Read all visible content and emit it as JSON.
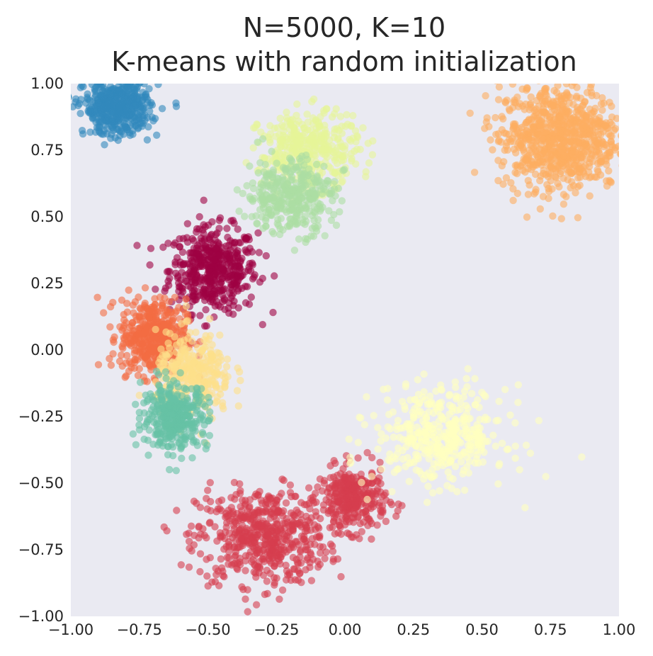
{
  "chart_data": {
    "type": "scatter",
    "title_lines": [
      "N=5000, K=10",
      "K-means with random initialization"
    ],
    "xlabel": "",
    "ylabel": "",
    "xlim": [
      -1.0,
      1.0
    ],
    "ylim": [
      -1.0,
      1.0
    ],
    "xticks": [
      "−1.00",
      "−0.75",
      "−0.50",
      "−0.25",
      "0.00",
      "0.25",
      "0.50",
      "0.75",
      "1.00"
    ],
    "yticks": [
      "1.00",
      "0.75",
      "0.50",
      "0.25",
      "0.00",
      "−0.25",
      "−0.50",
      "−0.75",
      "−1.00"
    ],
    "grid": false,
    "background": "#eaeaf2",
    "point_alpha": 0.6,
    "total_points": 5000,
    "series": [
      {
        "color": "#9e0142",
        "center": [
          -0.48,
          0.3
        ],
        "spread": [
          0.08,
          0.08
        ],
        "count": 480
      },
      {
        "color": "#d53e4f",
        "center": [
          -0.3,
          -0.7
        ],
        "spread": [
          0.12,
          0.09
        ],
        "count": 560
      },
      {
        "color": "#d53e4f",
        "center": [
          0.03,
          -0.56
        ],
        "spread": [
          0.06,
          0.06
        ],
        "count": 320
      },
      {
        "color": "#f46d43",
        "center": [
          -0.7,
          0.05
        ],
        "spread": [
          0.06,
          0.07
        ],
        "count": 460
      },
      {
        "color": "#fdae61",
        "center": [
          0.78,
          0.8
        ],
        "spread": [
          0.11,
          0.1
        ],
        "count": 820
      },
      {
        "color": "#fee08b",
        "center": [
          -0.55,
          -0.1
        ],
        "spread": [
          0.07,
          0.08
        ],
        "count": 320
      },
      {
        "color": "#ffffbf",
        "center": [
          0.35,
          -0.32
        ],
        "spread": [
          0.12,
          0.09
        ],
        "count": 420
      },
      {
        "color": "#e6f598",
        "center": [
          -0.13,
          0.75
        ],
        "spread": [
          0.09,
          0.07
        ],
        "count": 380
      },
      {
        "color": "#abdda4",
        "center": [
          -0.2,
          0.58
        ],
        "spread": [
          0.08,
          0.07
        ],
        "count": 360
      },
      {
        "color": "#66c2a5",
        "center": [
          -0.62,
          -0.25
        ],
        "spread": [
          0.06,
          0.06
        ],
        "count": 360
      },
      {
        "color": "#3288bd",
        "center": [
          -0.83,
          0.91
        ],
        "spread": [
          0.06,
          0.05
        ],
        "count": 520
      }
    ]
  }
}
